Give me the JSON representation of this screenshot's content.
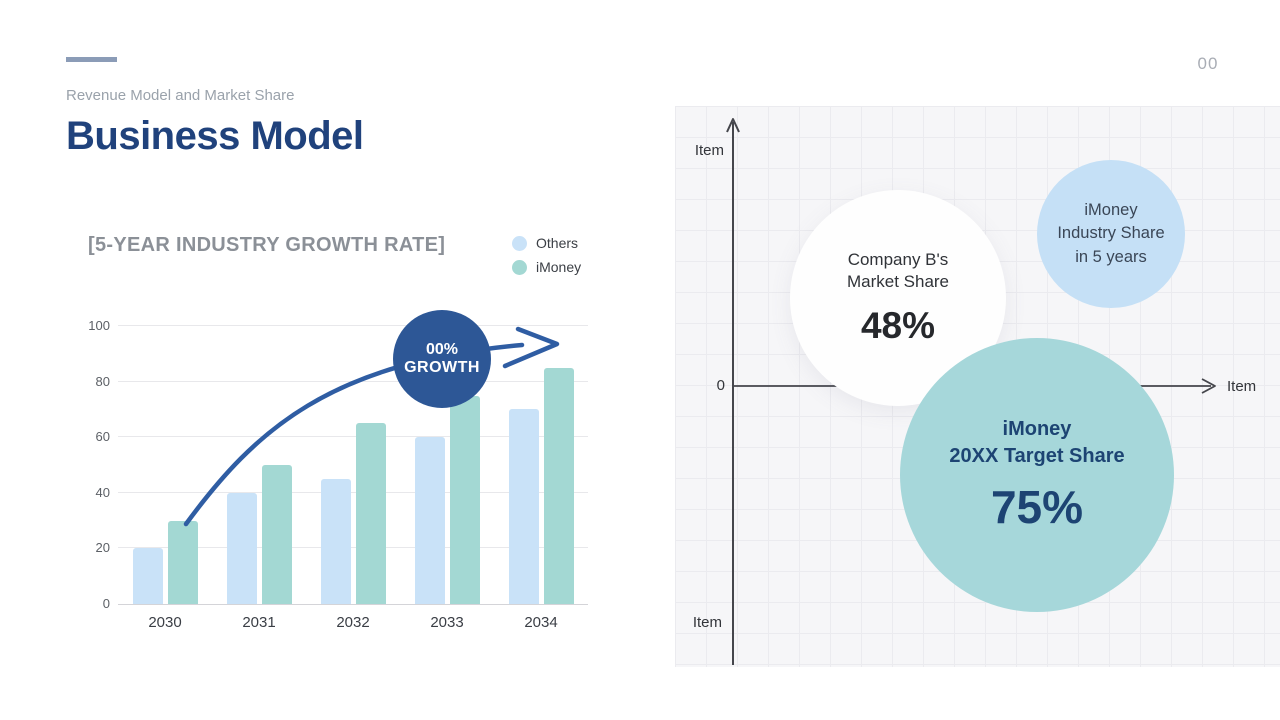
{
  "page": {
    "number": "00"
  },
  "header": {
    "subtitle": "Revenue Model and Market Share",
    "title": "Business Model"
  },
  "colors": {
    "accent_line": "#8b9cb7",
    "title_navy": "#20427c",
    "badge_navy": "#2d5796",
    "arrow_blue": "#2f5da3",
    "bar_others": "#c9e2f8",
    "bar_imoney": "#a3d8d3",
    "bubble_blue": "#c5e0f6",
    "bubble_teal": "#a6d7da",
    "bubble_text_navy": "#1d4473"
  },
  "chart_data": [
    {
      "type": "bar",
      "title": "[5-YEAR INDUSTRY GROWTH RATE]",
      "categories": [
        "2030",
        "2031",
        "2032",
        "2033",
        "2034"
      ],
      "series": [
        {
          "name": "Others",
          "color": "#c9e2f8",
          "values": [
            20,
            40,
            45,
            60,
            70
          ]
        },
        {
          "name": "iMoney",
          "color": "#a3d8d3",
          "values": [
            30,
            50,
            65,
            75,
            85
          ]
        }
      ],
      "ylim": [
        0,
        100
      ],
      "yticks": [
        0,
        20,
        40,
        60,
        80,
        100
      ],
      "grid": true,
      "legend_position": "top-right",
      "annotation": {
        "line1": "00%",
        "line2": "GROWTH",
        "shape": "circle-badge-with-arrow"
      }
    },
    {
      "type": "bubble",
      "ylabel_top": "Item",
      "ylabel_bottom": "Item",
      "xlabel": "Item",
      "origin_tick": "0",
      "grid": true,
      "bubbles": [
        {
          "id": "company-b",
          "line1": "Company B's",
          "line2": "Market Share",
          "value": "48%",
          "color": "#ffffff"
        },
        {
          "id": "imoney-industry",
          "line1": "iMoney",
          "line2": "Industry Share",
          "line3": "in 5 years",
          "value": "",
          "color": "#c5e0f6"
        },
        {
          "id": "imoney-target",
          "line1": "iMoney",
          "line2": "20XX Target Share",
          "value": "75%",
          "color": "#a6d7da"
        }
      ]
    }
  ]
}
